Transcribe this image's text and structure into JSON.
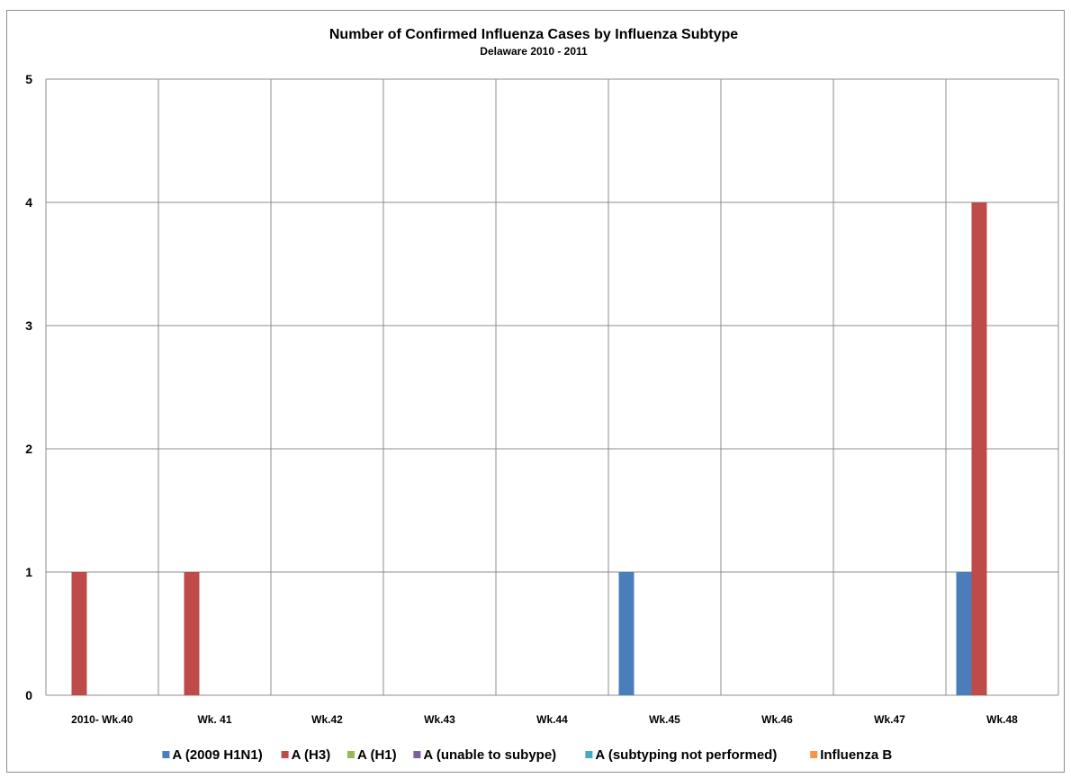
{
  "chart_data": {
    "type": "bar",
    "title": "Number of Confirmed Influenza Cases by Influenza Subtype",
    "subtitle": "Delaware 2010  - 2011",
    "categories": [
      "2010- Wk.40",
      "Wk. 41",
      "Wk.42",
      "Wk.43",
      "Wk.44",
      "Wk.45",
      "Wk.46",
      "Wk.47",
      "Wk.48"
    ],
    "ylim": [
      0,
      5
    ],
    "yticks": [
      0,
      1,
      2,
      3,
      4,
      5
    ],
    "grid": true,
    "legend_position": "bottom",
    "series": [
      {
        "name": "A (2009 H1N1)",
        "color": "#4a7ebb",
        "values": [
          0,
          0,
          0,
          0,
          0,
          1,
          0,
          0,
          1
        ]
      },
      {
        "name": "A (H3)",
        "color": "#be4b48",
        "values": [
          1,
          1,
          0,
          0,
          0,
          0,
          0,
          0,
          4
        ]
      },
      {
        "name": "A (H1)",
        "color": "#98b954",
        "values": [
          0,
          0,
          0,
          0,
          0,
          0,
          0,
          0,
          0
        ]
      },
      {
        "name": "A (unable to subype)",
        "color": "#7d60a0",
        "values": [
          0,
          0,
          0,
          0,
          0,
          0,
          0,
          0,
          0
        ]
      },
      {
        "name": "A (subtyping not performed)",
        "color": "#46aac5",
        "values": [
          0,
          0,
          0,
          0,
          0,
          0,
          0,
          0,
          0
        ]
      },
      {
        "name": "Influenza B",
        "color": "#f79646",
        "values": [
          0,
          0,
          0,
          0,
          0,
          0,
          0,
          0,
          0
        ]
      }
    ]
  }
}
